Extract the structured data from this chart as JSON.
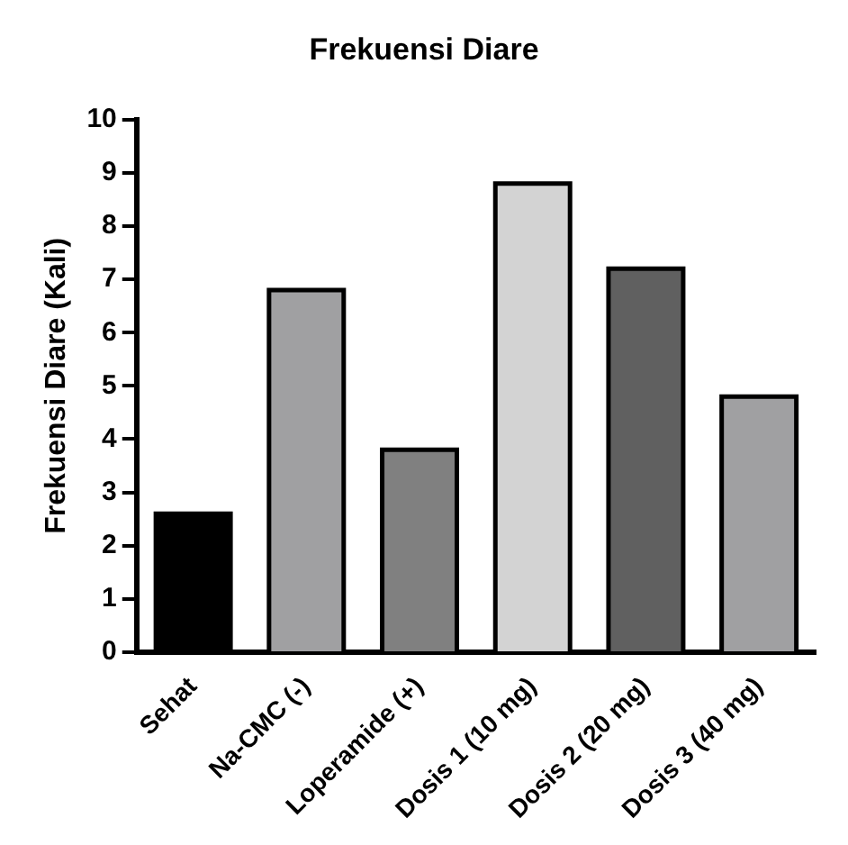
{
  "chart_data": {
    "type": "bar",
    "title": "Frekuensi Diare",
    "ylabel": "Frekuensi Diare (Kali)",
    "categories": [
      "Sehat",
      "Na-CMC (-)",
      "Loperamide (+)",
      "Dosis 1 (10 mg)",
      "Dosis 2 (20 mg)",
      "Dosis 3 (40 mg)"
    ],
    "values": [
      2.6,
      6.8,
      3.8,
      8.8,
      7.2,
      4.8
    ],
    "colors": [
      "#000000",
      "#a0a0a2",
      "#808080",
      "#d3d3d3",
      "#606060",
      "#a0a0a2"
    ],
    "ylim": [
      0,
      10
    ],
    "yticks": [
      0,
      1,
      2,
      3,
      4,
      5,
      6,
      7,
      8,
      9,
      10
    ],
    "grid": false,
    "legend": false
  }
}
